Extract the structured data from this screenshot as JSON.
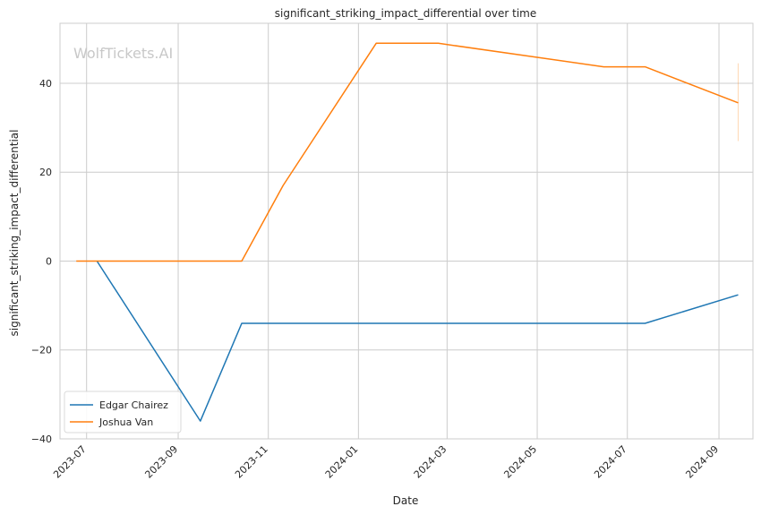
{
  "chart_data": {
    "type": "line",
    "title": "significant_striking_impact_differential over time",
    "xlabel": "Date",
    "ylabel": "significant_striking_impact_differential",
    "watermark": "WolfTickets.AI",
    "xlim": [
      "2023-06-13",
      "2024-09-24"
    ],
    "ylim": [
      -40,
      53.5
    ],
    "x_ticks": [
      "2023-07",
      "2023-09",
      "2023-11",
      "2024-01",
      "2024-03",
      "2024-05",
      "2024-07",
      "2024-09"
    ],
    "x_tick_dates": [
      "2023-07-01",
      "2023-09-01",
      "2023-11-01",
      "2024-01-01",
      "2024-03-01",
      "2024-05-01",
      "2024-07-01",
      "2024-09-01"
    ],
    "y_ticks": [
      -40,
      -20,
      0,
      20,
      40
    ],
    "y_tick_labels": [
      "−40",
      "−20",
      "0",
      "20",
      "40"
    ],
    "grid": true,
    "legend_position": "lower-left",
    "series": [
      {
        "name": "Edgar Chairez",
        "color": "#1f77b4",
        "x": [
          "2023-07-08",
          "2023-09-16",
          "2023-10-14",
          "2024-07-13",
          "2024-09-14"
        ],
        "y": [
          0,
          -36,
          -14,
          -14,
          -7.6
        ]
      },
      {
        "name": "Joshua Van",
        "color": "#ff7f0e",
        "x": [
          "2023-06-24",
          "2023-10-14",
          "2023-11-11",
          "2024-01-13",
          "2024-02-24",
          "2024-06-15",
          "2024-07-13",
          "2024-09-14"
        ],
        "y": [
          0,
          0,
          17,
          49,
          49,
          43.7,
          43.7,
          35.6
        ]
      }
    ],
    "error_bar": {
      "series": "Joshua Van",
      "x": "2024-09-14",
      "low": 27,
      "high": 44.5,
      "color": "#ff7f0e"
    }
  }
}
